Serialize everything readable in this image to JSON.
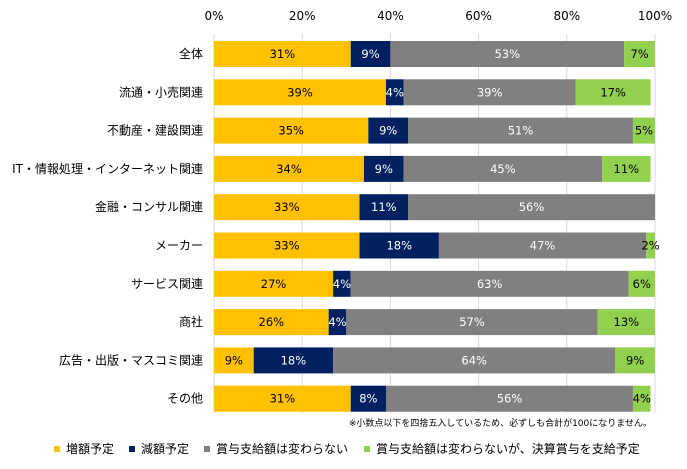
{
  "chart_data": {
    "type": "bar",
    "orientation": "horizontal",
    "stacked": true,
    "xlim": [
      0,
      100
    ],
    "x_ticks": [
      "0%",
      "20%",
      "40%",
      "60%",
      "80%",
      "100%"
    ],
    "categories": [
      "全体",
      "流通・小売関連",
      "不動産・建設関連",
      "IT・情報処理・インターネット関連",
      "金融・コンサル関連",
      "メーカー",
      "サービス関連",
      "商社",
      "広告・出版・マスコミ関連",
      "その他"
    ],
    "series": [
      {
        "name": "増額予定",
        "color": "#FFC000",
        "label_color": "#000000",
        "values": [
          31,
          39,
          35,
          34,
          33,
          33,
          27,
          26,
          9,
          31
        ],
        "labels": [
          "31%",
          "39%",
          "35%",
          "34%",
          "33%",
          "33%",
          "27%",
          "26%",
          "9%",
          "31%"
        ]
      },
      {
        "name": "減額予定",
        "color": "#002060",
        "label_color": "#FFFFFF",
        "values": [
          9,
          4,
          9,
          9,
          11,
          18,
          4,
          4,
          18,
          8
        ],
        "labels": [
          "9%",
          "4%",
          "9%",
          "9%",
          "11%",
          "18%",
          "4%",
          "4%",
          "18%",
          "8%"
        ]
      },
      {
        "name": "賞与支給額は変わらない",
        "color": "#808080",
        "label_color": "#FFFFFF",
        "values": [
          53,
          39,
          51,
          45,
          56,
          47,
          63,
          57,
          64,
          56
        ],
        "labels": [
          "53%",
          "39%",
          "51%",
          "45%",
          "56%",
          "47%",
          "63%",
          "57%",
          "64%",
          "56%"
        ]
      },
      {
        "name": "賞与支給額は変わらないが、決算賞与を支給予定",
        "color": "#92D050",
        "label_color": "#000000",
        "values": [
          7,
          17,
          5,
          11,
          0,
          2,
          6,
          13,
          9,
          4
        ],
        "labels": [
          "7%",
          "17%",
          "5%",
          "11%",
          "",
          "2%",
          "6%",
          "13%",
          "9%",
          "4%"
        ]
      }
    ],
    "footnote": "※小数点以下を四捨五入しているため、必ずしも合計が100になりません。"
  }
}
